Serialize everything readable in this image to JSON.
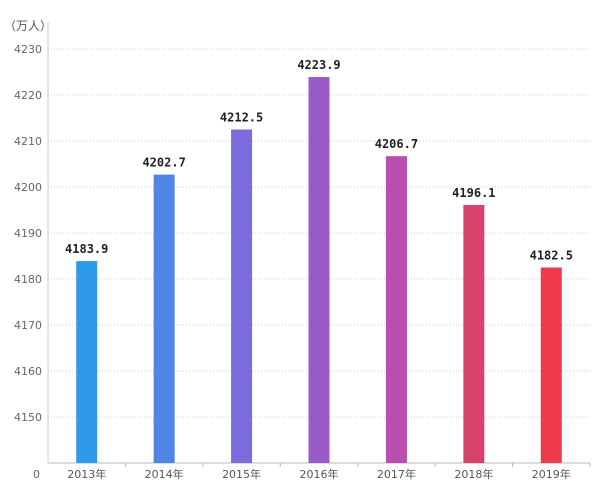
{
  "chart_data": {
    "type": "bar",
    "unit_label": "（万人）",
    "categories": [
      "2013年",
      "2014年",
      "2015年",
      "2016年",
      "2017年",
      "2018年",
      "2019年"
    ],
    "values": [
      4183.9,
      4202.7,
      4212.5,
      4223.9,
      4206.7,
      4196.1,
      4182.5
    ],
    "data_labels": [
      "4183.9",
      "4202.7",
      "4212.5",
      "4223.9",
      "4206.7",
      "4196.1",
      "4182.5"
    ],
    "y_ticks": [
      {
        "value": 4150,
        "label": "4150"
      },
      {
        "value": 4160,
        "label": "4160"
      },
      {
        "value": 4170,
        "label": "4170"
      },
      {
        "value": 4180,
        "label": "4180"
      },
      {
        "value": 4190,
        "label": "4190"
      },
      {
        "value": 4200,
        "label": "4200"
      },
      {
        "value": 4210,
        "label": "4210"
      },
      {
        "value": 4220,
        "label": "4220"
      },
      {
        "value": 4230,
        "label": "4230"
      }
    ],
    "y_zero_label": "0",
    "ylim": [
      4140,
      4230
    ],
    "y_axis_broken": true,
    "grid": true,
    "legend": "none",
    "colors": [
      "#2e9bea",
      "#4f86e6",
      "#7a6cdc",
      "#9c5ac9",
      "#b84faf",
      "#d6446e",
      "#ee3a4a"
    ]
  }
}
